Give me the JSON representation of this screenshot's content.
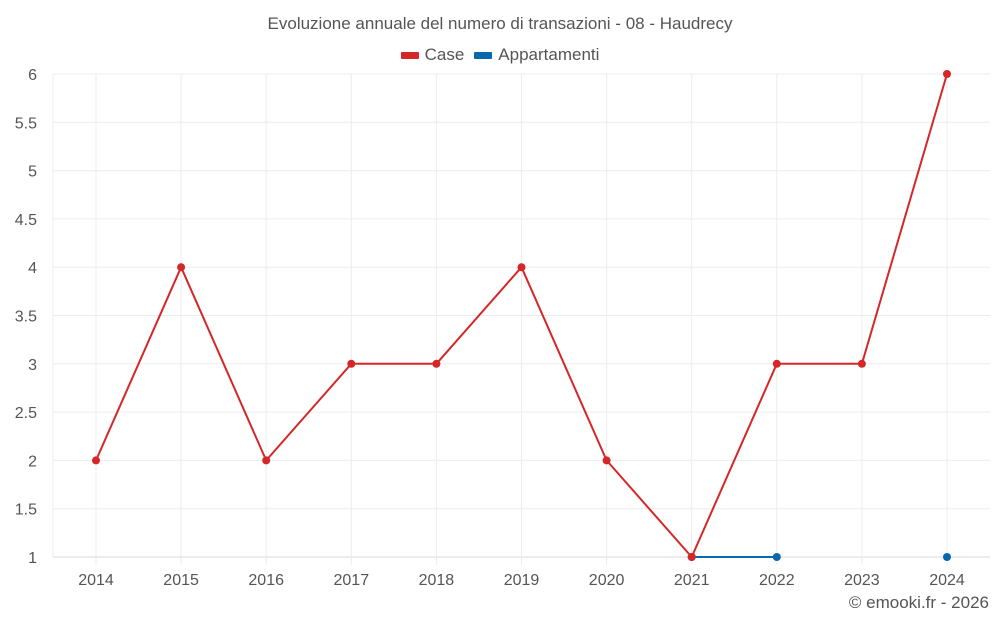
{
  "chart_data": {
    "type": "line",
    "title": "Evoluzione annuale del numero di transazioni - 08 - Haudrecy",
    "xlabel": "",
    "ylabel": "",
    "x": [
      "2014",
      "2015",
      "2016",
      "2017",
      "2018",
      "2019",
      "2020",
      "2021",
      "2022",
      "2023",
      "2024"
    ],
    "series": [
      {
        "name": "Case",
        "color": "#d62728",
        "values": [
          2,
          4,
          2,
          3,
          3,
          4,
          2,
          1,
          3,
          3,
          6
        ]
      },
      {
        "name": "Appartamenti",
        "color": "#0868ac",
        "values": [
          null,
          null,
          null,
          null,
          null,
          null,
          null,
          1,
          1,
          null,
          1
        ]
      }
    ],
    "ylim": [
      1,
      6
    ],
    "yticks": [
      "1",
      "1.5",
      "2",
      "2.5",
      "3",
      "3.5",
      "4",
      "4.5",
      "5",
      "5.5",
      "6"
    ],
    "grid": true,
    "legend_position": "top"
  },
  "credit": "© emooki.fr - 2026"
}
